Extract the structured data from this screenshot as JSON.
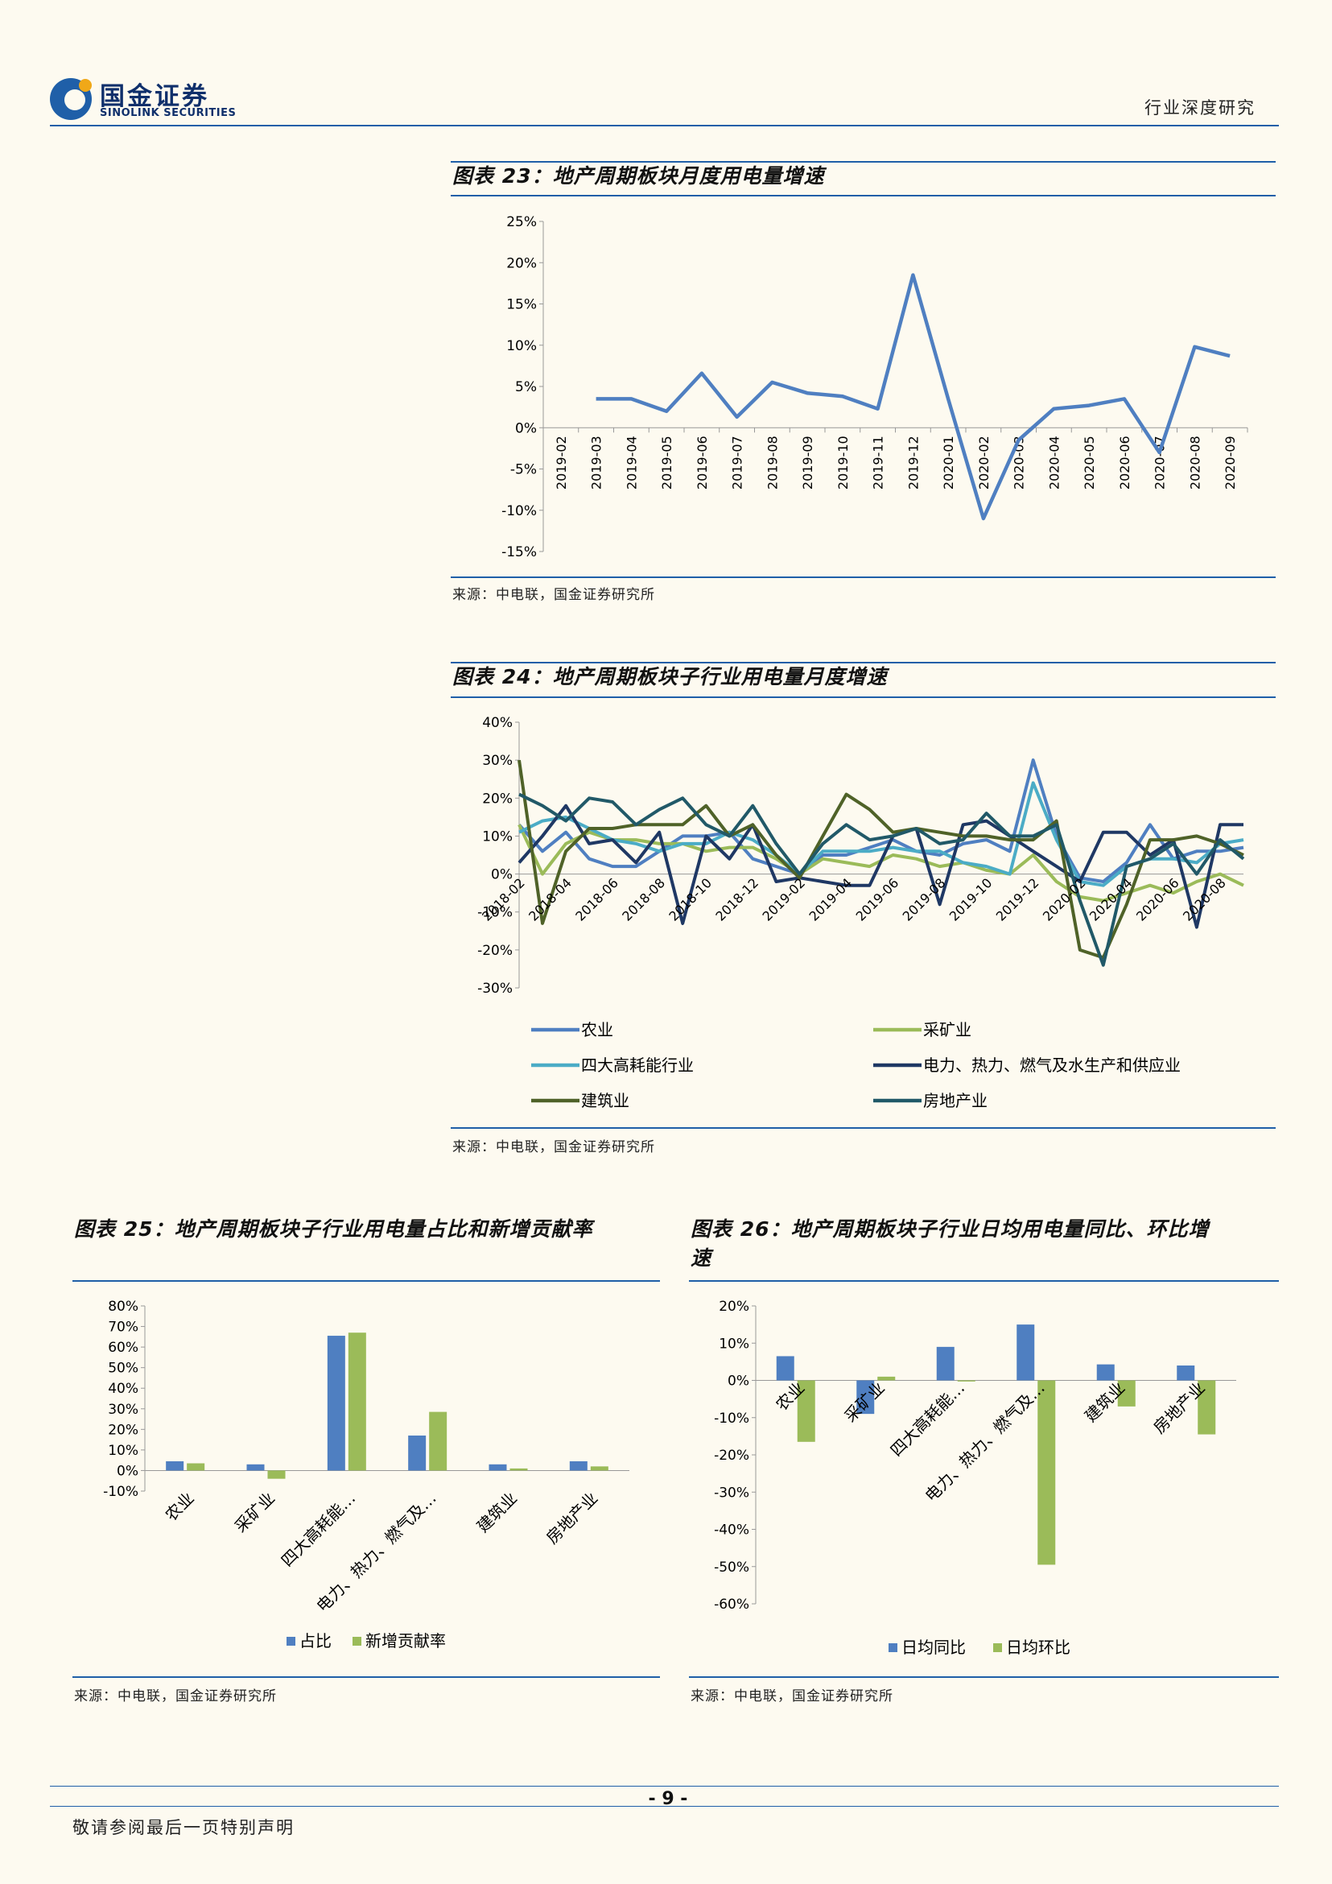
{
  "header": {
    "logo_cn": "国金证券",
    "logo_en": "SINOLINK SECURITIES",
    "section": "行业深度研究"
  },
  "figures": [
    {
      "title": "图表 23：地产周期板块月度用电量增速",
      "source": "来源：中电联，国金证券研究所"
    },
    {
      "title": "图表 24：地产周期板块子行业用电量月度增速",
      "source": "来源：中电联，国金证券研究所"
    },
    {
      "title": "图表 25：地产周期板块子行业用电量占比和新增贡献率",
      "source": "来源：中电联，国金证券研究所"
    },
    {
      "title_line1": "图表 26：地产周期板块子行业日均用电量同比、环比增",
      "title_line2": "速",
      "source": "来源：中电联，国金证券研究所"
    }
  ],
  "footer": {
    "page": "- 9 -",
    "disclaimer": "敬请参阅最后一页特别声明"
  },
  "colors": {
    "blue": "#4f7fc1",
    "green": "#9bbb59",
    "light_blue": "#4bacc6",
    "navy": "#1f3864",
    "dark_green": "#4f6228",
    "teal": "#215968",
    "rule": "#1f5fa8"
  },
  "chart_data": [
    {
      "type": "line",
      "x": [
        "2019-02",
        "2019-03",
        "2019-04",
        "2019-05",
        "2019-06",
        "2019-07",
        "2019-08",
        "2019-09",
        "2019-10",
        "2019-11",
        "2019-12",
        "2020-01",
        "2020-02",
        "2020-03",
        "2020-04",
        "2020-05",
        "2020-06",
        "2020-07",
        "2020-08",
        "2020-09"
      ],
      "yticks": [
        "25%",
        "20%",
        "15%",
        "10%",
        "5%",
        "0%",
        "-5%",
        "-10%",
        "-15%"
      ],
      "ylim": [
        -15,
        25
      ],
      "series": [
        {
          "values": [
            null,
            3.5,
            3.5,
            2.0,
            6.6,
            1.3,
            5.5,
            4.2,
            3.8,
            2.3,
            18.5,
            3.5,
            -11.0,
            -1.5,
            2.3,
            2.7,
            3.5,
            -3.0,
            9.8,
            8.7
          ]
        }
      ]
    },
    {
      "type": "line",
      "x": [
        "2018-02",
        "2018-03",
        "2018-04",
        "2018-05",
        "2018-06",
        "2018-07",
        "2018-08",
        "2018-09",
        "2018-10",
        "2018-11",
        "2018-12",
        "2019-01",
        "2019-02",
        "2019-03",
        "2019-04",
        "2019-05",
        "2019-06",
        "2019-07",
        "2019-08",
        "2019-09",
        "2019-10",
        "2019-11",
        "2019-12",
        "2020-01",
        "2020-02",
        "2020-03",
        "2020-04",
        "2020-05",
        "2020-06",
        "2020-07",
        "2020-08",
        "2020-09"
      ],
      "xticks": [
        "2018-02",
        "2018-04",
        "2018-06",
        "2018-08",
        "2018-10",
        "2018-12",
        "2019-02",
        "2019-04",
        "2019-06",
        "2019-08",
        "2019-10",
        "2019-12",
        "2020-02",
        "2020-04",
        "2020-06",
        "2020-08"
      ],
      "yticks": [
        "40%",
        "30%",
        "20%",
        "10%",
        "0%",
        "-10%",
        "-20%",
        "-30%"
      ],
      "ylim": [
        -30,
        40
      ],
      "legend": [
        "农业",
        "采矿业",
        "四大高耗能行业",
        "电力、热力、燃气及水生产和供应业",
        "建筑业",
        "房地产业"
      ],
      "series": [
        {
          "name": "农业",
          "values": [
            13,
            6,
            11,
            4,
            2,
            2,
            6,
            10,
            10,
            11,
            4,
            2,
            0,
            5,
            5,
            7,
            9,
            6,
            5,
            8,
            9,
            6,
            30,
            10,
            -1,
            -2,
            3,
            13,
            4,
            6,
            6,
            7
          ]
        },
        {
          "name": "采矿业",
          "values": [
            13,
            0,
            8,
            11,
            9,
            9,
            8,
            8,
            6,
            7,
            7,
            4,
            0,
            4,
            3,
            2,
            5,
            4,
            2,
            3,
            1,
            0,
            5,
            -2,
            -6,
            -7,
            -5,
            -3,
            -5,
            -2,
            0,
            -3
          ]
        },
        {
          "name": "四大高耗能行业",
          "values": [
            11,
            14,
            15,
            12,
            9,
            8,
            6,
            8,
            8,
            11,
            9,
            5,
            0,
            6,
            6,
            6,
            7,
            6,
            6,
            3,
            2,
            0,
            24,
            9,
            -2,
            -3,
            2,
            4,
            4,
            3,
            8,
            9
          ]
        },
        {
          "name": "电力、热力、燃气及水生产和供应业",
          "values": [
            3,
            10,
            18,
            8,
            9,
            3,
            11,
            -13,
            10,
            4,
            13,
            -2,
            -1,
            -2,
            -3,
            -3,
            10,
            12,
            -8,
            13,
            14,
            10,
            6,
            2,
            -2,
            11,
            11,
            5,
            9,
            -14,
            13,
            13
          ]
        },
        {
          "name": "建筑业",
          "values": [
            30,
            -13,
            6,
            12,
            12,
            13,
            13,
            13,
            18,
            10,
            13,
            5,
            -1,
            10,
            21,
            17,
            11,
            12,
            11,
            10,
            10,
            9,
            9,
            14,
            -20,
            -22,
            -8,
            9,
            9,
            10,
            8,
            5
          ]
        },
        {
          "name": "房地产业",
          "values": [
            21,
            18,
            14,
            20,
            19,
            13,
            17,
            20,
            13,
            10,
            18,
            8,
            0,
            8,
            13,
            9,
            10,
            12,
            8,
            9,
            16,
            10,
            10,
            13,
            -7,
            -24,
            2,
            4,
            8,
            0,
            9,
            4
          ]
        }
      ]
    },
    {
      "type": "bar",
      "categories": [
        "农业",
        "采矿业",
        "四大高耗能…",
        "电力、热力、燃气及…",
        "建筑业",
        "房地产业"
      ],
      "yticks": [
        "80%",
        "70%",
        "60%",
        "50%",
        "40%",
        "30%",
        "20%",
        "10%",
        "0%",
        "-10%"
      ],
      "ylim": [
        -10,
        80
      ],
      "legend": [
        "占比",
        "新增贡献率"
      ],
      "series": [
        {
          "name": "占比",
          "values": [
            4.5,
            3.0,
            65.5,
            17.0,
            3.0,
            4.5
          ]
        },
        {
          "name": "新增贡献率",
          "values": [
            3.5,
            -4.0,
            67.0,
            28.5,
            1.0,
            2.0
          ]
        }
      ]
    },
    {
      "type": "bar",
      "categories": [
        "农业",
        "采矿业",
        "四大高耗能…",
        "电力、热力、燃气及…",
        "建筑业",
        "房地产业"
      ],
      "yticks": [
        "20%",
        "10%",
        "0%",
        "-10%",
        "-20%",
        "-30%",
        "-40%",
        "-50%",
        "-60%"
      ],
      "ylim": [
        -60,
        20
      ],
      "legend": [
        "日均同比",
        "日均环比"
      ],
      "series": [
        {
          "name": "日均同比",
          "values": [
            6.5,
            -9.0,
            9.0,
            15.0,
            4.3,
            4.0
          ]
        },
        {
          "name": "日均环比",
          "values": [
            -16.5,
            1.0,
            -0.3,
            -49.5,
            -7.0,
            -14.5
          ]
        }
      ]
    }
  ]
}
